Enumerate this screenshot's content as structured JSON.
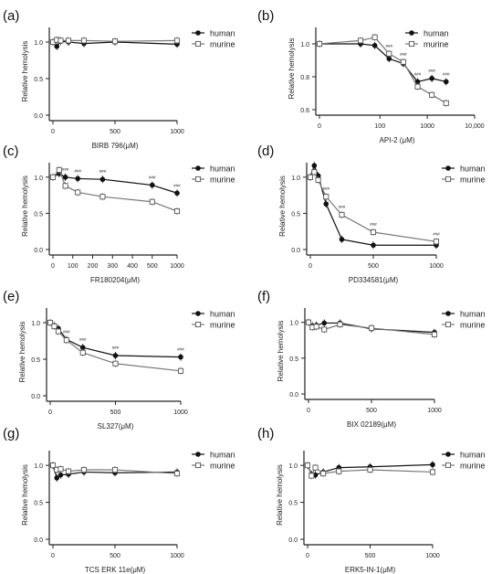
{
  "chart_data": [
    {
      "panel": "(a)",
      "type": "line",
      "xlabel": "BIRB 796(μM)",
      "ylabel": "Relative hemolysis",
      "x": [
        0,
        31.25,
        62.5,
        125,
        250,
        500,
        1000
      ],
      "xlim": [
        0,
        1000
      ],
      "ylim": [
        0,
        1.2
      ],
      "xticks": [
        "0",
        "500",
        "1000"
      ],
      "yticks": [
        "0.0",
        "0.5",
        "1.0"
      ],
      "series": [
        {
          "name": "human",
          "marker": "filled-circle",
          "values": [
            1.0,
            0.94,
            1.01,
            1.0,
            0.98,
            1.0,
            0.97
          ]
        },
        {
          "name": "murine",
          "marker": "open-square",
          "values": [
            1.0,
            1.03,
            1.02,
            1.02,
            1.02,
            1.01,
            1.02
          ]
        }
      ],
      "legend_position": "top-right",
      "grid": false
    },
    {
      "panel": "(b)",
      "type": "line",
      "xscale": "log",
      "xlabel": "API-2 (μM)",
      "ylabel": "Relative hemolysis",
      "x": [
        0,
        39,
        78,
        156,
        312,
        625,
        1250,
        2500
      ],
      "xlim": [
        0,
        10000
      ],
      "ylim": [
        0.6,
        1.1
      ],
      "xticks": [
        "0",
        "100",
        "1000",
        "10,000"
      ],
      "yticks": [
        "0.6",
        "0.8",
        "1.0"
      ],
      "series": [
        {
          "name": "human",
          "marker": "filled-circle",
          "values": [
            1.0,
            1.0,
            0.99,
            0.91,
            0.88,
            0.77,
            0.79,
            0.77
          ]
        },
        {
          "name": "murine",
          "marker": "open-square",
          "values": [
            1.0,
            1.02,
            1.04,
            0.94,
            0.89,
            0.74,
            0.69,
            0.64
          ]
        }
      ],
      "annotations": [
        "###",
        "###",
        "###",
        "###",
        "###"
      ],
      "legend_position": "top-right",
      "grid": false
    },
    {
      "panel": "(c)",
      "type": "line",
      "xlabel": "FR180204(μM)",
      "ylabel": "Relative hemolysis",
      "x": [
        0,
        31.25,
        62.5,
        125,
        250,
        500,
        1000
      ],
      "xlim": [
        0,
        1000
      ],
      "ylim": [
        0,
        1.2
      ],
      "xticks": [
        "0",
        "100",
        "200",
        "300",
        "400",
        "500",
        "1000"
      ],
      "yticks": [
        "0.0",
        "0.5",
        "1.0"
      ],
      "series": [
        {
          "name": "human",
          "marker": "filled-circle",
          "values": [
            1.0,
            1.05,
            1.0,
            0.98,
            0.97,
            0.89,
            0.78
          ]
        },
        {
          "name": "murine",
          "marker": "open-square",
          "values": [
            1.0,
            1.1,
            0.88,
            0.79,
            0.73,
            0.66,
            0.53
          ]
        }
      ],
      "annotations": [
        "###",
        "###",
        "###",
        "###",
        "###"
      ],
      "legend_position": "top-right",
      "grid": false
    },
    {
      "panel": "(d)",
      "type": "line",
      "xlabel": "PD334581(μM)",
      "ylabel": "Relative hemolysis",
      "x": [
        0,
        31.25,
        62.5,
        125,
        250,
        500,
        1000
      ],
      "xlim": [
        0,
        1000
      ],
      "ylim": [
        0,
        1.2
      ],
      "xticks": [
        "0",
        "500",
        "1000"
      ],
      "yticks": [
        "0.0",
        "0.5",
        "1.0"
      ],
      "series": [
        {
          "name": "human",
          "marker": "filled-circle",
          "values": [
            1.0,
            1.16,
            1.02,
            0.63,
            0.14,
            0.06,
            0.06
          ]
        },
        {
          "name": "murine",
          "marker": "open-square",
          "values": [
            1.0,
            1.07,
            0.96,
            0.73,
            0.48,
            0.24,
            0.11
          ]
        }
      ],
      "annotations": [
        "###",
        "###",
        "###",
        "###"
      ],
      "legend_position": "top-right",
      "grid": false
    },
    {
      "panel": "(e)",
      "type": "line",
      "xlabel": "SL327(μM)",
      "ylabel": "Relative hemolysis",
      "x": [
        0,
        31.25,
        62.5,
        125,
        250,
        500,
        1000
      ],
      "xlim": [
        0,
        1000
      ],
      "ylim": [
        0,
        1.2
      ],
      "xticks": [
        "0",
        "500",
        "1000"
      ],
      "yticks": [
        "0.0",
        "0.5",
        "1.0"
      ],
      "series": [
        {
          "name": "human",
          "marker": "filled-circle",
          "values": [
            1.0,
            0.96,
            0.92,
            0.77,
            0.66,
            0.55,
            0.53
          ]
        },
        {
          "name": "murine",
          "marker": "open-square",
          "values": [
            1.0,
            0.95,
            0.88,
            0.76,
            0.59,
            0.44,
            0.34
          ]
        }
      ],
      "annotations": [
        "###",
        "###",
        "###",
        "###"
      ],
      "legend_position": "top-right",
      "grid": false
    },
    {
      "panel": "(f)",
      "type": "line",
      "xlabel": "BIX 02189(μM)",
      "ylabel": "Relative hemolysis",
      "x": [
        0,
        31.25,
        62.5,
        125,
        250,
        500,
        1000
      ],
      "xlim": [
        0,
        1000
      ],
      "ylim": [
        0,
        1.2
      ],
      "xticks": [
        "0",
        "500",
        "1000"
      ],
      "yticks": [
        "0.0",
        "0.5",
        "1.0"
      ],
      "series": [
        {
          "name": "human",
          "marker": "filled-circle",
          "values": [
            1.0,
            0.95,
            0.96,
            0.99,
            0.99,
            0.91,
            0.86
          ]
        },
        {
          "name": "murine",
          "marker": "open-square",
          "values": [
            1.0,
            0.93,
            0.94,
            0.9,
            0.97,
            0.92,
            0.83
          ]
        }
      ],
      "legend_position": "top-right",
      "grid": false
    },
    {
      "panel": "(g)",
      "type": "line",
      "xlabel": "TCS ERK 11e(μM)",
      "ylabel": "Relative hemolysis",
      "x": [
        0,
        31.25,
        62.5,
        125,
        250,
        500,
        1000
      ],
      "xlim": [
        0,
        1000
      ],
      "ylim": [
        0,
        1.2
      ],
      "xticks": [
        "0",
        "500",
        "1000"
      ],
      "yticks": [
        "0.0",
        "0.5",
        "1.0"
      ],
      "series": [
        {
          "name": "human",
          "marker": "filled-circle",
          "values": [
            1.0,
            0.83,
            0.87,
            0.88,
            0.91,
            0.9,
            0.91
          ]
        },
        {
          "name": "murine",
          "marker": "open-square",
          "values": [
            1.0,
            0.94,
            0.95,
            0.92,
            0.94,
            0.94,
            0.89
          ]
        }
      ],
      "legend_position": "top-right",
      "grid": false
    },
    {
      "panel": "(h)",
      "type": "line",
      "xlabel": "ERK5-IN-1(μM)",
      "ylabel": "Relative hemolysis",
      "x": [
        0,
        31.25,
        62.5,
        125,
        250,
        500,
        1000
      ],
      "xlim": [
        0,
        1000
      ],
      "ylim": [
        0,
        1.2
      ],
      "xticks": [
        "0",
        "500",
        "1000"
      ],
      "yticks": [
        "0.0",
        "0.5",
        "1.0"
      ],
      "series": [
        {
          "name": "human",
          "marker": "filled-circle",
          "values": [
            1.0,
            0.88,
            0.87,
            0.91,
            0.97,
            0.98,
            1.01
          ]
        },
        {
          "name": "murine",
          "marker": "open-square",
          "values": [
            1.0,
            0.86,
            0.97,
            0.89,
            0.92,
            0.94,
            0.91
          ]
        }
      ],
      "legend_position": "top-right",
      "grid": false
    }
  ]
}
